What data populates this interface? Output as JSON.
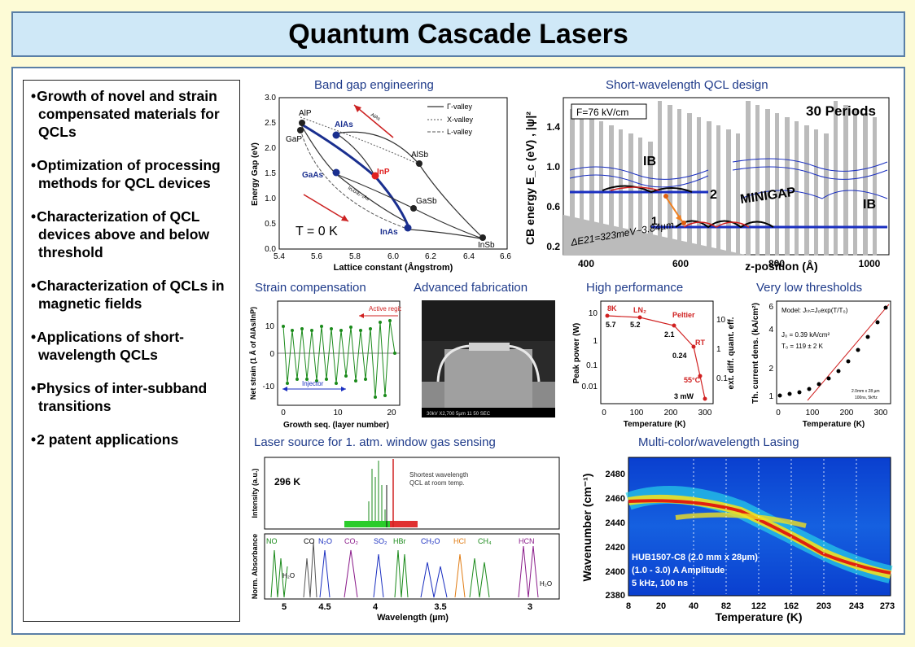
{
  "title": "Quantum Cascade Lasers",
  "bullets": [
    "Growth of novel and strain compensated materials for QCLs",
    "Optimization of processing methods for QCL devices",
    "Characterization of QCL devices above and below threshold",
    "Characterization of QCLs in magnetic fields",
    "Applications of short-wavelength QCLs",
    "Physics of inter-subband transitions",
    "2 patent applications"
  ],
  "captions": {
    "bandgap": "Band gap engineering",
    "shortwave": "Short-wavelength QCL design",
    "strain": "Strain compensation",
    "fab": "Advanced fabrication",
    "perf": "High performance",
    "thresh": "Very low thresholds",
    "gas": "Laser source for 1. atm. window gas sensing",
    "multicolor": "Multi-color/wavelength Lasing"
  },
  "bandgap": {
    "xlabel": "Lattice constant (Ångstrom)",
    "ylabel": "Energy Gap (eV)",
    "xticks": [
      "5.4",
      "5.6",
      "5.8",
      "6.0",
      "6.2",
      "6.4",
      "6.6"
    ],
    "yticks": [
      "0.0",
      "0.5",
      "1.0",
      "1.5",
      "2.0",
      "2.5",
      "3.0"
    ],
    "temp": "T = 0 K",
    "legend": [
      "Γ-valley",
      "X-valley",
      "L-valley"
    ],
    "materials": [
      "AlP",
      "GaP",
      "AlAs",
      "GaAs",
      "InP",
      "AlSb",
      "GaSb",
      "InAs",
      "InSb"
    ],
    "diag_labels": [
      "AlAs",
      "InₓGa₁₋ₓAs"
    ]
  },
  "shortwave": {
    "field": "F=76 kV/cm",
    "periods": "30 Periods",
    "ylabel": "CB energy  E_c (eV) , |ψ|²",
    "xlabel": "z-position (Å)",
    "xticks": [
      "400",
      "600",
      "800",
      "1000"
    ],
    "yticks": [
      "1.4",
      "1.0",
      "0.6",
      "0.2"
    ],
    "labels": [
      "IB",
      "IB",
      "MINIGAP",
      "2",
      "1"
    ],
    "delta": "ΔE21=323meV~3.84µm"
  },
  "strain": {
    "ylabel": "Net strain (1 Å of AlAs/InP)",
    "xlabel": "Growth seq. (layer number)",
    "xticks": [
      "0",
      "10",
      "20"
    ],
    "yticks": [
      "10",
      "0",
      "-10"
    ],
    "active": "Active region",
    "injector": "Injector"
  },
  "fab": {
    "footer": "30kV   X2,700   5µm     11 50 SEC"
  },
  "perf": {
    "ylabel": "Peak power (W)",
    "ylabel2": "ext. diff. quant. eff.",
    "xlabel": "Temperature (K)",
    "xticks": [
      "0",
      "100",
      "200",
      "300"
    ],
    "yticks": [
      "10",
      "1",
      "0.1",
      "0.01"
    ],
    "y2ticks": [
      "10",
      "1",
      "0.1"
    ],
    "labels": [
      "8K",
      "LN₂",
      "Peltier",
      "RT",
      "55°C",
      "5.7",
      "5.2",
      "2.1",
      "0.24",
      "3 mW"
    ]
  },
  "thresh": {
    "ylabel": "Th. current dens. (kA/cm²)",
    "xlabel": "Temperature (K)",
    "xticks": [
      "0",
      "100",
      "200",
      "300"
    ],
    "yticks": [
      "6",
      "4",
      "2",
      "1"
    ],
    "model": "Model: Jₜₕ=J₀exp(T/T₀)",
    "j0": "J₀ = 0.39 kA/cm²",
    "t0": "T₀ = 119 ± 2 K",
    "dims": "2.0mm x 28 µm",
    "pulse": "100ns, 5kHz"
  },
  "gas": {
    "temp": "296 K",
    "note1": "Shortest wavelength",
    "note2": "QCL at room temp.",
    "ylabel_top": "Intensity (a.u.)",
    "ylabel_bottom": "Norm. Absorbance",
    "xlabel": "Wavelength (µm)",
    "xticks": [
      "5",
      "4.5",
      "4",
      "3.5",
      "3"
    ],
    "species": [
      "NO",
      "CO",
      "N₂O",
      "CO₂",
      "SO₂",
      "HBr",
      "CH₂O",
      "HCl",
      "CH₄",
      "HCN",
      "H₂O",
      "H₂O"
    ]
  },
  "multicolor": {
    "ylabel": "Wavenumber (cm⁻¹)",
    "xlabel": "Temperature (K)",
    "xticks": [
      "8",
      "20",
      "40",
      "82",
      "122",
      "162",
      "203",
      "243",
      "273"
    ],
    "yticks": [
      "2480",
      "2460",
      "2440",
      "2420",
      "2400",
      "2380"
    ],
    "info1": "HUB1507-C8 (2.0 mm x 28µm)",
    "info2": "(1.0 - 3.0) A  Amplitude",
    "info3": "5 kHz, 100 ns"
  },
  "colors": {
    "panel_border": "#5a7fa6",
    "title_bg": "#cfe8f7",
    "page_bg": "#fdfbd6",
    "caption": "#1f3b8a"
  }
}
